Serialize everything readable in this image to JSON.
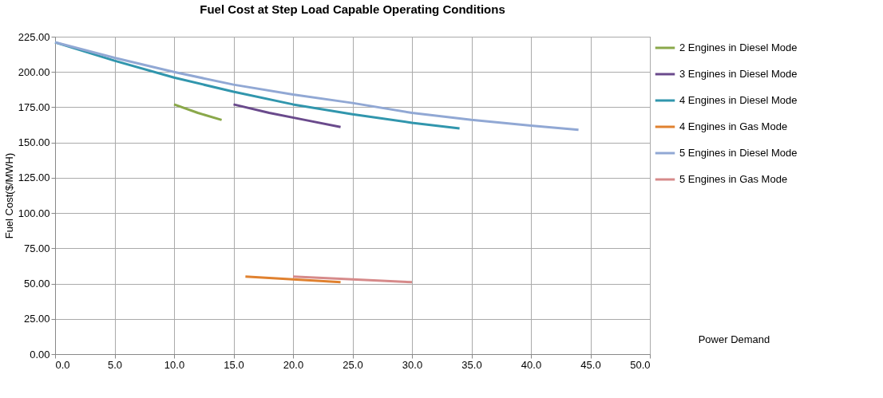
{
  "chart_data": {
    "type": "line",
    "title": "Fuel Cost at Step Load Capable Operating Conditions",
    "xlabel": "Power Demand",
    "ylabel": "Fuel Cost($/MWH)",
    "xlim": [
      0,
      50
    ],
    "xticks": [
      {
        "value": 0,
        "label": "0.0"
      },
      {
        "value": 5,
        "label": "5.0"
      },
      {
        "value": 10,
        "label": "10.0"
      },
      {
        "value": 15,
        "label": "15.0"
      },
      {
        "value": 20,
        "label": "20.0"
      },
      {
        "value": 25,
        "label": "25.0"
      },
      {
        "value": 30,
        "label": "30.0"
      },
      {
        "value": 35,
        "label": "35.0"
      },
      {
        "value": 40,
        "label": "40.0"
      },
      {
        "value": 45,
        "label": "45.0"
      },
      {
        "value": 50,
        "label": "50.0"
      }
    ],
    "ylim": [
      0,
      225
    ],
    "yticks": [
      {
        "value": 0,
        "label": "0.00"
      },
      {
        "value": 25,
        "label": "25.00"
      },
      {
        "value": 50,
        "label": "50.00"
      },
      {
        "value": 75,
        "label": "75.00"
      },
      {
        "value": 100,
        "label": "100.00"
      },
      {
        "value": 125,
        "label": "125.00"
      },
      {
        "value": 150,
        "label": "150.00"
      },
      {
        "value": 175,
        "label": "175.00"
      },
      {
        "value": 200,
        "label": "200.00"
      },
      {
        "value": 225,
        "label": "225.00"
      }
    ],
    "grid": true,
    "legend": "right",
    "marker": "none",
    "line_style": "solid",
    "series": [
      {
        "name": "2 Engines in Diesel Mode",
        "color": "#8aa84a",
        "x": [
          10,
          12,
          14
        ],
        "values": [
          177,
          171,
          166
        ]
      },
      {
        "name": "3 Engines in Diesel Mode",
        "color": "#6a4a8c",
        "x": [
          15,
          18,
          21,
          24
        ],
        "values": [
          177,
          171,
          166,
          161
        ]
      },
      {
        "name": "4 Engines in Diesel Mode",
        "color": "#3196ad",
        "x": [
          0,
          5,
          10,
          15,
          20,
          25,
          30,
          34
        ],
        "values": [
          221,
          208,
          196,
          186,
          177,
          170,
          164,
          160
        ]
      },
      {
        "name": "4 Engines in Gas Mode",
        "color": "#e0812f",
        "x": [
          16,
          20,
          24
        ],
        "values": [
          55,
          53,
          51
        ]
      },
      {
        "name": "5 Engines in Diesel Mode",
        "color": "#91a8d4",
        "x": [
          0,
          5,
          10,
          15,
          20,
          25,
          30,
          35,
          40,
          44
        ],
        "values": [
          221,
          210,
          200,
          191,
          184,
          178,
          171,
          166,
          162,
          159
        ]
      },
      {
        "name": "5 Engines in Gas Mode",
        "color": "#d68a8a",
        "x": [
          20,
          25,
          30
        ],
        "values": [
          55,
          53,
          51
        ]
      }
    ]
  }
}
